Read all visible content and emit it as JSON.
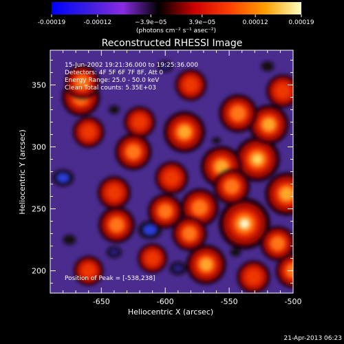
{
  "chart_data": {
    "type": "heatmap",
    "title": "Reconstructed RHESSI Image",
    "xlabel": "Heliocentric X (arcsec)",
    "ylabel": "Heliocentric Y (arcsec)",
    "xlim": [
      -690,
      -500
    ],
    "ylim": [
      182,
      378
    ],
    "x_ticks": [
      -650,
      -600,
      -550,
      -500
    ],
    "y_ticks": [
      200,
      250,
      300,
      350
    ],
    "grid": false,
    "colorbar": {
      "label": "(photons cm⁻² s⁻¹ asec⁻²)",
      "range": [
        -0.00019,
        0.00019
      ],
      "tick_values": [
        -0.00019,
        -0.00012,
        -3.9e-05,
        3.9e-05,
        0.00012,
        0.00019
      ],
      "tick_labels": [
        "-0.00019",
        "-0.00012",
        "−3.9e−05",
        "3.9e−05",
        "0.00012",
        "0.00019"
      ],
      "colors": [
        "#0000ff",
        "#3a1ee0",
        "#8a2be2",
        "#000000",
        "#cc0000",
        "#ff4000",
        "#ffa000",
        "#ffffc0"
      ]
    },
    "annotations": [
      "15-Jun-2002 19:21:36.000 to 19:25:36.000",
      "Detectors: 4F 5F 6F 7F 8F, Att 0",
      "Energy Range: 25.0 - 50.0 keV",
      "Clean    Total counts: 5.35E+03"
    ],
    "peak_label": "Position of Peak = [-538,238]",
    "peak": {
      "x": -538,
      "y": 238
    },
    "bright_sources": [
      {
        "x": -538,
        "y": 238,
        "value": 0.00019
      },
      {
        "x": -528,
        "y": 290,
        "value": 0.00015
      },
      {
        "x": -505,
        "y": 262,
        "value": 0.00014
      },
      {
        "x": -556,
        "y": 284,
        "value": 0.00013
      },
      {
        "x": -585,
        "y": 312,
        "value": 0.00013
      },
      {
        "x": -519,
        "y": 318,
        "value": 0.00012
      },
      {
        "x": -543,
        "y": 327,
        "value": 0.00011
      },
      {
        "x": -625,
        "y": 296,
        "value": 0.0001
      },
      {
        "x": -666,
        "y": 340,
        "value": 0.00011
      },
      {
        "x": -665,
        "y": 352,
        "value": 9e-05
      },
      {
        "x": -573,
        "y": 251,
        "value": 0.00011
      },
      {
        "x": -548,
        "y": 268,
        "value": 0.0001
      },
      {
        "x": -568,
        "y": 205,
        "value": 0.00012
      },
      {
        "x": -581,
        "y": 230,
        "value": 9e-05
      },
      {
        "x": -638,
        "y": 237,
        "value": 0.0001
      },
      {
        "x": -600,
        "y": 248,
        "value": 9e-05
      },
      {
        "x": -512,
        "y": 222,
        "value": 9e-05
      },
      {
        "x": -500,
        "y": 200,
        "value": 9e-05
      },
      {
        "x": -640,
        "y": 263,
        "value": 8e-05
      },
      {
        "x": -508,
        "y": 345,
        "value": 8e-05
      },
      {
        "x": -660,
        "y": 312,
        "value": 7e-05
      },
      {
        "x": -595,
        "y": 275,
        "value": 8e-05
      },
      {
        "x": -580,
        "y": 350,
        "value": 7e-05
      },
      {
        "x": -531,
        "y": 195,
        "value": 8e-05
      },
      {
        "x": -660,
        "y": 200,
        "value": 6e-05
      },
      {
        "x": -620,
        "y": 320,
        "value": 7e-05
      },
      {
        "x": -610,
        "y": 210,
        "value": 6e-05
      }
    ],
    "dim_sources": [
      {
        "x": -680,
        "y": 275,
        "value": -0.0001
      },
      {
        "x": -612,
        "y": 233,
        "value": -0.00011
      },
      {
        "x": -590,
        "y": 202,
        "value": -8e-05
      },
      {
        "x": -640,
        "y": 215,
        "value": -7e-05
      },
      {
        "x": -600,
        "y": 365,
        "value": -7e-05
      },
      {
        "x": -520,
        "y": 365,
        "value": -6e-05
      },
      {
        "x": -560,
        "y": 305,
        "value": -4e-05
      },
      {
        "x": -640,
        "y": 330,
        "value": -5e-05
      },
      {
        "x": -675,
        "y": 225,
        "value": -6e-05
      },
      {
        "x": -545,
        "y": 215,
        "value": -5e-05
      }
    ]
  },
  "footer": {
    "date": "21-Apr-2013 06:23"
  }
}
